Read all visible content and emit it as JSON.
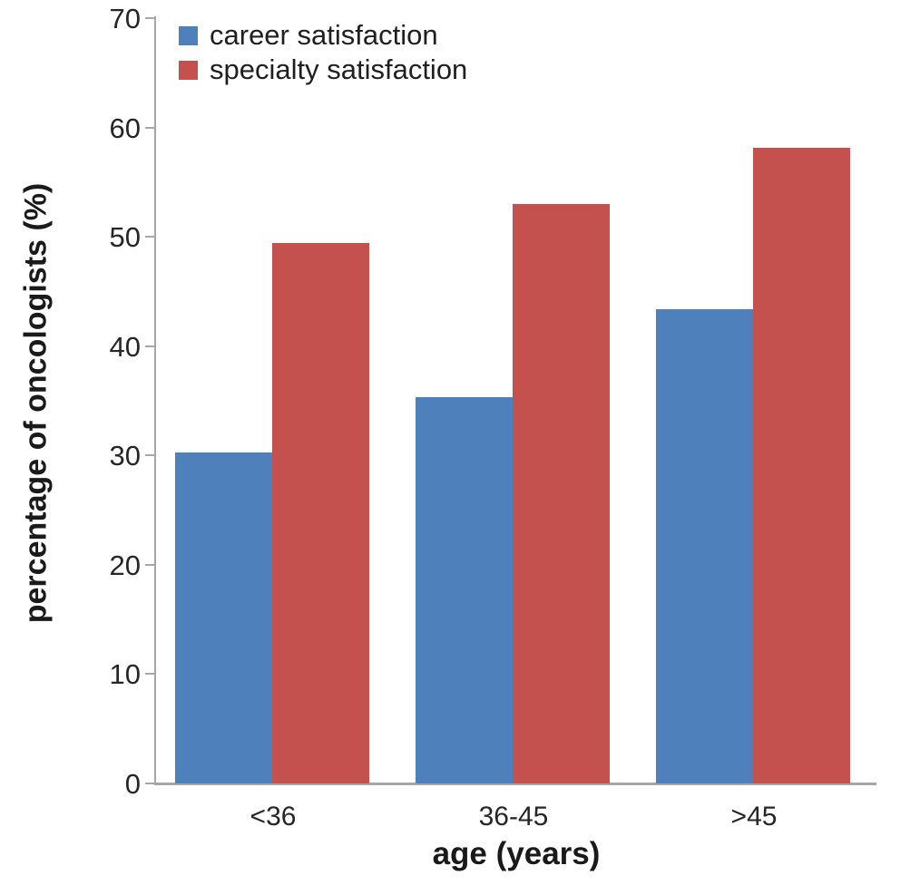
{
  "figure": {
    "background": "#ffffff",
    "axis_color": "#a6a6a6",
    "tick_label_color": "#262626"
  },
  "chart_data": {
    "type": "bar",
    "title": "",
    "categories": [
      "<36",
      "36-45",
      ">45"
    ],
    "series": [
      {
        "name": "career satisfaction",
        "color": "#4E80BC",
        "values": [
          30.3,
          35.3,
          43.4
        ]
      },
      {
        "name": "specialty satisfaction",
        "color": "#C4514E",
        "values": [
          49.4,
          53.0,
          58.1
        ]
      }
    ],
    "xlabel": "age (years)",
    "ylabel": "percentage of oncologists (%)",
    "ylim": [
      0,
      70
    ],
    "yticks": [
      0,
      10,
      20,
      30,
      40,
      50,
      60,
      70
    ],
    "legend_position": "top-left",
    "grid": false
  }
}
